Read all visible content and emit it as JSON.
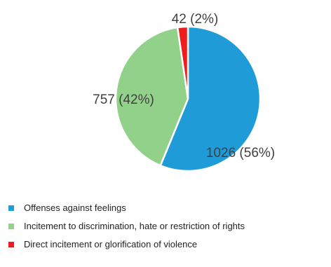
{
  "chart_data": {
    "type": "pie",
    "title": "",
    "categories": [
      "Offenses against feelings",
      "Incitement to discrimination, hate or restriction of rights",
      "Direct incitement or glorification of violence"
    ],
    "values": [
      1026,
      757,
      42
    ],
    "percent_labels": [
      "1026 (56%)",
      "757 (42%)",
      "42 (2%)"
    ],
    "colors": [
      "#1F9BD7",
      "#92D18A",
      "#EE1C1C"
    ],
    "start_angle_deg": 0,
    "direction": "clockwise",
    "legend_position": "bottom"
  }
}
